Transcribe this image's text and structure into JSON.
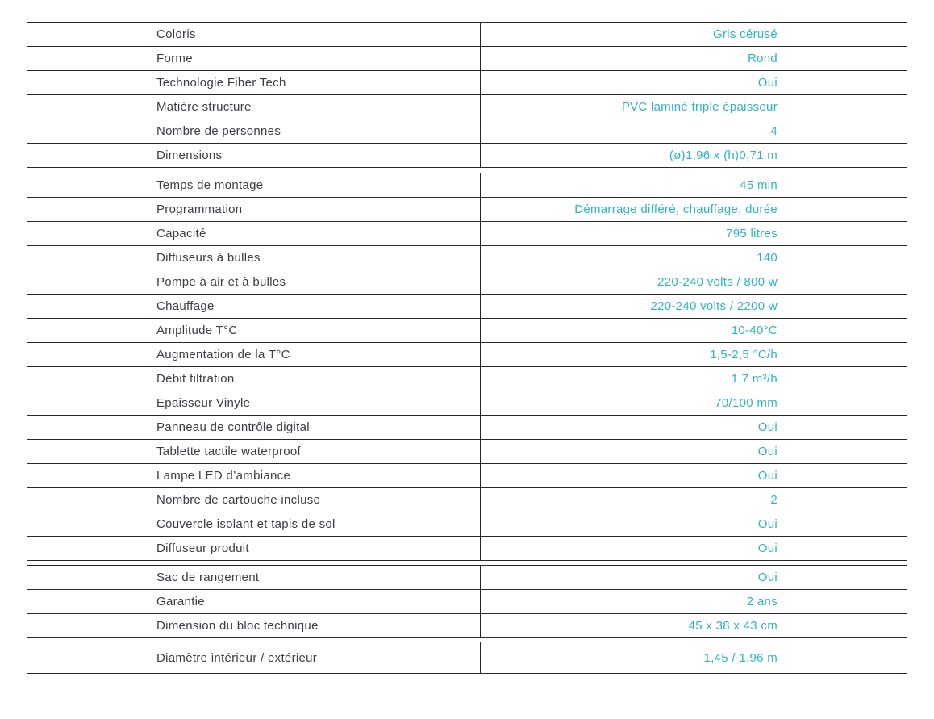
{
  "colors": {
    "label_text": "#3c3c47",
    "value_text": "#2fb4c3",
    "border": "#26262e"
  },
  "table": {
    "rows": [
      {
        "label": "Coloris",
        "value": "Gris cérusé"
      },
      {
        "label": "Forme",
        "value": "Rond"
      },
      {
        "label": "Technologie Fiber Tech",
        "value": "Oui"
      },
      {
        "label": "Matière structure",
        "value": "PVC laminé triple épaisseur"
      },
      {
        "label": "Nombre de personnes",
        "value": "4"
      },
      {
        "label": "Dimensions",
        "value": "(ø)1,96 x (h)0,71 m"
      },
      {
        "label": "Temps de montage",
        "value": "45 min"
      },
      {
        "label": "Programmation",
        "value": "Démarrage différé, chauffage, durée"
      },
      {
        "label": "Capacité",
        "value": "795 litres"
      },
      {
        "label": "Diffuseurs à bulles",
        "value": "140"
      },
      {
        "label": "Pompe à air et à bulles",
        "value": "220-240 volts / 800 w"
      },
      {
        "label": "Chauffage",
        "value": "220-240 volts / 2200 w"
      },
      {
        "label": "Amplitude T°C",
        "value": "10-40°C"
      },
      {
        "label": "Augmentation de la T°C",
        "value": "1,5-2,5 °C/h"
      },
      {
        "label": "Débit filtration",
        "value": "1,7 m³/h"
      },
      {
        "label": "Epaisseur Vinyle",
        "value": "70/100 mm"
      },
      {
        "label": "Panneau de contrôle digital",
        "value": "Oui"
      },
      {
        "label": "Tablette tactile waterproof",
        "value": "Oui"
      },
      {
        "label": "Lampe LED d’ambiance",
        "value": "Oui"
      },
      {
        "label": "Nombre de cartouche incluse",
        "value": "2"
      },
      {
        "label": "Couvercle isolant et tapis de sol",
        "value": "Oui"
      },
      {
        "label": "Diffuseur produit",
        "value": "Oui"
      },
      {
        "label": "Sac de rangement",
        "value": "Oui"
      },
      {
        "label": "Garantie",
        "value": "2 ans"
      },
      {
        "label": "Dimension du bloc technique",
        "value": "45 x 38 x 43 cm"
      },
      {
        "label": "Diamètre intérieur / extérieur",
        "value": "1,45 / 1,96 m"
      }
    ]
  }
}
